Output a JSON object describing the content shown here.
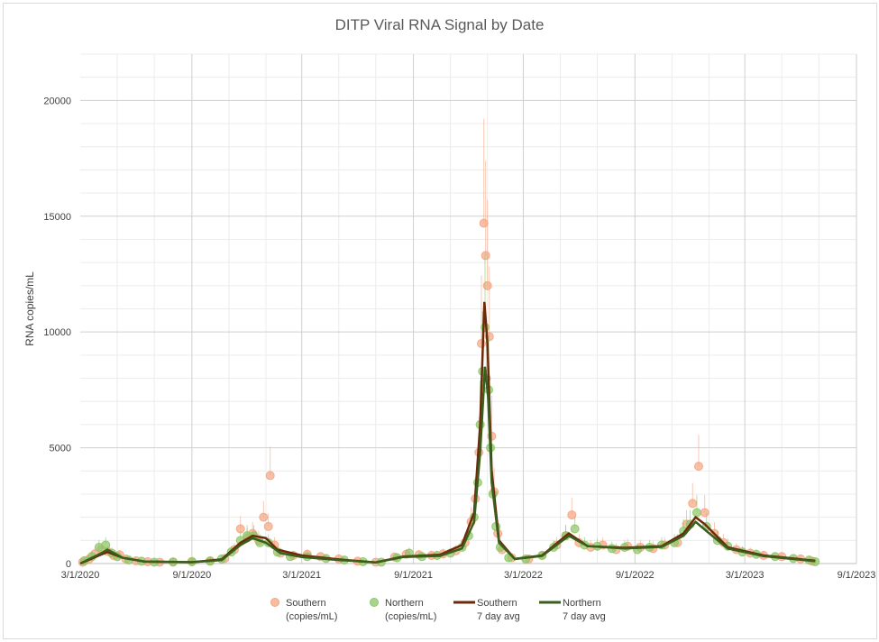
{
  "chart_data": {
    "type": "scatter",
    "title": "DITP Viral RNA Signal by Date",
    "ylabel": "RNA copies/mL",
    "xlabel": "",
    "ylim": [
      0,
      22000
    ],
    "xlim": [
      "2020-03-01",
      "2023-09-01"
    ],
    "y_ticks": [
      "0",
      "5000",
      "10000",
      "15000",
      "20000"
    ],
    "x_ticks": [
      "3/1/2020",
      "9/1/2020",
      "3/1/2021",
      "9/1/2021",
      "3/1/2022",
      "9/1/2022",
      "3/1/2023",
      "9/1/2023"
    ],
    "grid": true,
    "legend_position": "bottom",
    "series": [
      {
        "name": "Southern\n(copies/mL)",
        "kind": "scatter",
        "color": "#f4a582",
        "points": [
          [
            "2020-03-05",
            60
          ],
          [
            "2020-03-15",
            180
          ],
          [
            "2020-03-25",
            420
          ],
          [
            "2020-04-05",
            600
          ],
          [
            "2020-04-15",
            520
          ],
          [
            "2020-04-25",
            350
          ],
          [
            "2020-05-05",
            380
          ],
          [
            "2020-05-15",
            200
          ],
          [
            "2020-06-01",
            120
          ],
          [
            "2020-06-20",
            80
          ],
          [
            "2020-07-10",
            60
          ],
          [
            "2020-08-01",
            70
          ],
          [
            "2020-09-01",
            90
          ],
          [
            "2020-10-01",
            120
          ],
          [
            "2020-10-25",
            220
          ],
          [
            "2020-11-10",
            600
          ],
          [
            "2020-11-20",
            1500
          ],
          [
            "2020-12-01",
            1100
          ],
          [
            "2020-12-10",
            1300
          ],
          [
            "2020-12-20",
            1000
          ],
          [
            "2020-12-28",
            2000
          ],
          [
            "2021-01-05",
            1600
          ],
          [
            "2021-01-08",
            3800
          ],
          [
            "2021-01-15",
            800
          ],
          [
            "2021-01-25",
            450
          ],
          [
            "2021-02-15",
            350
          ],
          [
            "2021-03-10",
            400
          ],
          [
            "2021-04-01",
            300
          ],
          [
            "2021-05-01",
            200
          ],
          [
            "2021-06-01",
            100
          ],
          [
            "2021-07-01",
            60
          ],
          [
            "2021-08-01",
            280
          ],
          [
            "2021-08-20",
            400
          ],
          [
            "2021-09-10",
            380
          ],
          [
            "2021-10-01",
            350
          ],
          [
            "2021-10-20",
            420
          ],
          [
            "2021-11-10",
            550
          ],
          [
            "2021-11-25",
            900
          ],
          [
            "2021-12-05",
            1800
          ],
          [
            "2021-12-12",
            2800
          ],
          [
            "2021-12-18",
            4800
          ],
          [
            "2021-12-22",
            9500
          ],
          [
            "2021-12-26",
            14700
          ],
          [
            "2021-12-29",
            13300
          ],
          [
            "2022-01-01",
            12000
          ],
          [
            "2022-01-04",
            9800
          ],
          [
            "2022-01-08",
            5500
          ],
          [
            "2022-01-12",
            3100
          ],
          [
            "2022-01-18",
            1300
          ],
          [
            "2022-01-25",
            600
          ],
          [
            "2022-02-10",
            250
          ],
          [
            "2022-03-10",
            200
          ],
          [
            "2022-04-01",
            350
          ],
          [
            "2022-04-25",
            800
          ],
          [
            "2022-05-10",
            1200
          ],
          [
            "2022-05-20",
            2100
          ],
          [
            "2022-06-01",
            900
          ],
          [
            "2022-06-20",
            700
          ],
          [
            "2022-07-10",
            800
          ],
          [
            "2022-08-01",
            600
          ],
          [
            "2022-08-20",
            750
          ],
          [
            "2022-09-10",
            700
          ],
          [
            "2022-10-01",
            650
          ],
          [
            "2022-10-20",
            800
          ],
          [
            "2022-11-10",
            900
          ],
          [
            "2022-11-25",
            1700
          ],
          [
            "2022-12-05",
            2600
          ],
          [
            "2022-12-15",
            4200
          ],
          [
            "2022-12-25",
            2200
          ],
          [
            "2023-01-10",
            1300
          ],
          [
            "2023-01-25",
            900
          ],
          [
            "2023-02-15",
            600
          ],
          [
            "2023-03-10",
            450
          ],
          [
            "2023-04-01",
            350
          ],
          [
            "2023-05-01",
            300
          ],
          [
            "2023-06-01",
            200
          ],
          [
            "2023-06-20",
            100
          ]
        ]
      },
      {
        "name": "Northern\n(copies/mL)",
        "kind": "scatter",
        "color": "#8cc665",
        "points": [
          [
            "2020-03-08",
            120
          ],
          [
            "2020-03-20",
            300
          ],
          [
            "2020-04-01",
            700
          ],
          [
            "2020-04-12",
            800
          ],
          [
            "2020-04-22",
            450
          ],
          [
            "2020-05-01",
            300
          ],
          [
            "2020-05-20",
            150
          ],
          [
            "2020-06-10",
            100
          ],
          [
            "2020-07-01",
            60
          ],
          [
            "2020-08-01",
            70
          ],
          [
            "2020-09-01",
            80
          ],
          [
            "2020-10-01",
            100
          ],
          [
            "2020-10-20",
            200
          ],
          [
            "2020-11-05",
            500
          ],
          [
            "2020-11-20",
            1000
          ],
          [
            "2020-12-01",
            1200
          ],
          [
            "2020-12-12",
            1200
          ],
          [
            "2020-12-22",
            900
          ],
          [
            "2021-01-05",
            900
          ],
          [
            "2021-01-20",
            500
          ],
          [
            "2021-02-10",
            300
          ],
          [
            "2021-03-10",
            300
          ],
          [
            "2021-04-10",
            220
          ],
          [
            "2021-05-10",
            150
          ],
          [
            "2021-06-10",
            80
          ],
          [
            "2021-07-10",
            60
          ],
          [
            "2021-08-05",
            250
          ],
          [
            "2021-08-25",
            450
          ],
          [
            "2021-09-15",
            300
          ],
          [
            "2021-10-10",
            350
          ],
          [
            "2021-11-01",
            450
          ],
          [
            "2021-11-20",
            700
          ],
          [
            "2021-12-01",
            1200
          ],
          [
            "2021-12-10",
            2000
          ],
          [
            "2021-12-16",
            3500
          ],
          [
            "2021-12-20",
            6000
          ],
          [
            "2021-12-24",
            8300
          ],
          [
            "2021-12-28",
            10200
          ],
          [
            "2021-12-30",
            8000
          ],
          [
            "2022-01-03",
            7500
          ],
          [
            "2022-01-06",
            5000
          ],
          [
            "2022-01-10",
            3000
          ],
          [
            "2022-01-15",
            1600
          ],
          [
            "2022-01-22",
            700
          ],
          [
            "2022-02-05",
            250
          ],
          [
            "2022-03-05",
            200
          ],
          [
            "2022-04-01",
            350
          ],
          [
            "2022-04-20",
            700
          ],
          [
            "2022-05-10",
            1200
          ],
          [
            "2022-05-25",
            1500
          ],
          [
            "2022-06-10",
            800
          ],
          [
            "2022-07-01",
            750
          ],
          [
            "2022-07-25",
            650
          ],
          [
            "2022-08-15",
            700
          ],
          [
            "2022-09-05",
            600
          ],
          [
            "2022-09-25",
            700
          ],
          [
            "2022-10-15",
            800
          ],
          [
            "2022-11-05",
            900
          ],
          [
            "2022-11-20",
            1400
          ],
          [
            "2022-12-01",
            1700
          ],
          [
            "2022-12-12",
            2200
          ],
          [
            "2022-12-28",
            1600
          ],
          [
            "2023-01-15",
            1000
          ],
          [
            "2023-02-01",
            750
          ],
          [
            "2023-02-25",
            500
          ],
          [
            "2023-03-20",
            400
          ],
          [
            "2023-04-20",
            300
          ],
          [
            "2023-05-20",
            220
          ],
          [
            "2023-06-15",
            150
          ],
          [
            "2023-06-25",
            80
          ]
        ]
      },
      {
        "name": "Southern\n7 day avg",
        "kind": "line",
        "color": "#6b2a0a",
        "points": [
          [
            "2020-03-01",
            0
          ],
          [
            "2020-04-01",
            350
          ],
          [
            "2020-04-15",
            500
          ],
          [
            "2020-05-10",
            250
          ],
          [
            "2020-06-15",
            80
          ],
          [
            "2020-09-01",
            60
          ],
          [
            "2020-10-20",
            180
          ],
          [
            "2020-11-20",
            900
          ],
          [
            "2020-12-10",
            1200
          ],
          [
            "2021-01-01",
            1100
          ],
          [
            "2021-01-20",
            600
          ],
          [
            "2021-03-01",
            350
          ],
          [
            "2021-05-01",
            180
          ],
          [
            "2021-07-01",
            50
          ],
          [
            "2021-08-15",
            300
          ],
          [
            "2021-10-15",
            380
          ],
          [
            "2021-11-20",
            800
          ],
          [
            "2021-12-10",
            2200
          ],
          [
            "2021-12-20",
            6000
          ],
          [
            "2021-12-27",
            11300
          ],
          [
            "2022-01-01",
            9500
          ],
          [
            "2022-01-08",
            4000
          ],
          [
            "2022-01-20",
            1000
          ],
          [
            "2022-02-15",
            200
          ],
          [
            "2022-04-01",
            350
          ],
          [
            "2022-05-15",
            1300
          ],
          [
            "2022-06-15",
            750
          ],
          [
            "2022-08-15",
            680
          ],
          [
            "2022-10-15",
            750
          ],
          [
            "2022-11-20",
            1300
          ],
          [
            "2022-12-10",
            2000
          ],
          [
            "2022-12-25",
            1700
          ],
          [
            "2023-02-01",
            700
          ],
          [
            "2023-04-01",
            350
          ],
          [
            "2023-06-25",
            120
          ]
        ]
      },
      {
        "name": "Northern\n7 day avg",
        "kind": "line",
        "color": "#3a5e1c",
        "points": [
          [
            "2020-03-01",
            0
          ],
          [
            "2020-04-01",
            400
          ],
          [
            "2020-04-15",
            600
          ],
          [
            "2020-05-10",
            250
          ],
          [
            "2020-06-15",
            90
          ],
          [
            "2020-09-01",
            60
          ],
          [
            "2020-10-20",
            150
          ],
          [
            "2020-11-20",
            800
          ],
          [
            "2020-12-10",
            1100
          ],
          [
            "2021-01-01",
            900
          ],
          [
            "2021-01-25",
            450
          ],
          [
            "2021-03-01",
            280
          ],
          [
            "2021-05-01",
            150
          ],
          [
            "2021-07-01",
            50
          ],
          [
            "2021-08-15",
            280
          ],
          [
            "2021-10-15",
            330
          ],
          [
            "2021-11-20",
            650
          ],
          [
            "2021-12-10",
            1800
          ],
          [
            "2021-12-20",
            4800
          ],
          [
            "2021-12-28",
            8500
          ],
          [
            "2022-01-02",
            7200
          ],
          [
            "2022-01-08",
            3500
          ],
          [
            "2022-01-20",
            900
          ],
          [
            "2022-02-15",
            200
          ],
          [
            "2022-04-01",
            330
          ],
          [
            "2022-05-15",
            1200
          ],
          [
            "2022-06-15",
            750
          ],
          [
            "2022-08-15",
            650
          ],
          [
            "2022-10-15",
            720
          ],
          [
            "2022-11-20",
            1200
          ],
          [
            "2022-12-10",
            1800
          ],
          [
            "2022-12-28",
            1400
          ],
          [
            "2023-02-01",
            650
          ],
          [
            "2023-04-01",
            320
          ],
          [
            "2023-06-25",
            100
          ]
        ]
      }
    ]
  },
  "legend": [
    {
      "line1": "Southern",
      "line2": "(copies/mL)",
      "marker": "dot",
      "color": "#f4a582"
    },
    {
      "line1": "Northern",
      "line2": "(copies/mL)",
      "marker": "dot",
      "color": "#8cc665"
    },
    {
      "line1": "Southern",
      "line2": "7 day avg",
      "marker": "line",
      "color": "#6b2a0a"
    },
    {
      "line1": "Northern",
      "line2": "7 day avg",
      "marker": "line",
      "color": "#3a5e1c"
    }
  ]
}
